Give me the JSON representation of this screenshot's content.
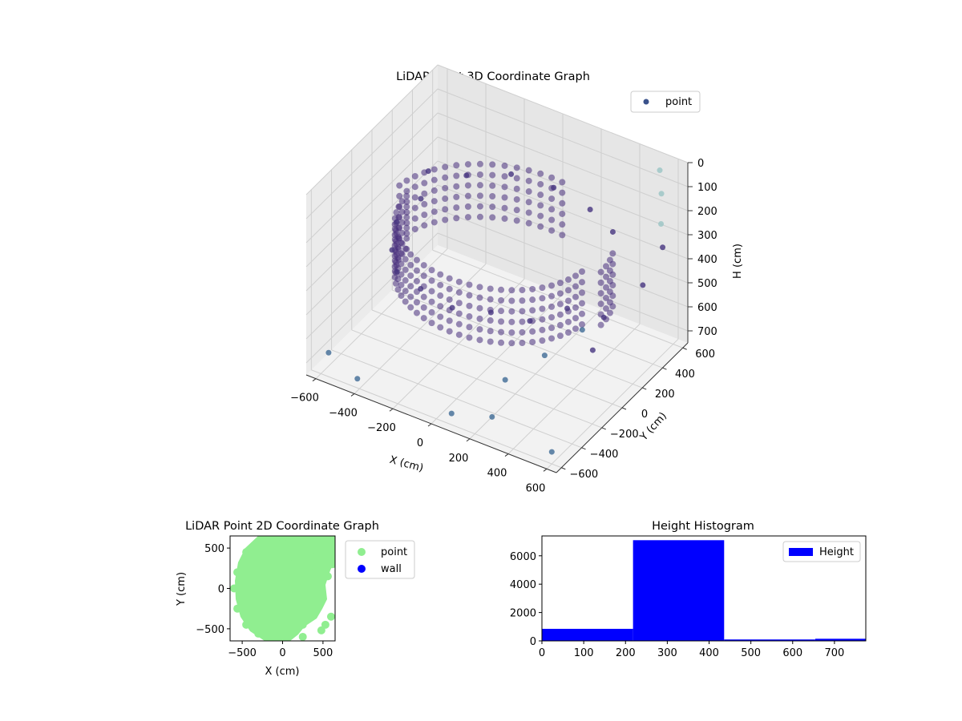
{
  "chart_data": [
    {
      "type": "scatter",
      "dims": 3,
      "title": "LiDAR Point 3D Coordinate Graph",
      "xlabel": "X (cm)",
      "ylabel": "Y (cm)",
      "zlabel": "H (cm)",
      "xticks": [
        "−600",
        "−400",
        "−200",
        "0",
        "200",
        "400",
        "600"
      ],
      "yticks": [
        "−600",
        "−400",
        "−200",
        "0",
        "200",
        "400",
        "600"
      ],
      "zticks": [
        "0",
        "100",
        "200",
        "300",
        "400",
        "500",
        "600",
        "700"
      ],
      "xlim": [
        -650,
        650
      ],
      "ylim": [
        -650,
        650
      ],
      "zlim": [
        0,
        750
      ],
      "z_inverted": true,
      "grid": true,
      "legend_position": "top-right",
      "series": [
        {
          "name": "point",
          "color": "#3b528b",
          "colormap": "viridis",
          "shape": "ring of points around a cylindrical wall with scattered outliers",
          "points": [
            [
              -520,
              310,
              260
            ],
            [
              -480,
              160,
              300
            ],
            [
              -500,
              -40,
              320
            ],
            [
              -430,
              -220,
              340
            ],
            [
              -320,
              -380,
              330
            ],
            [
              -150,
              -470,
              310
            ],
            [
              30,
              -500,
              320
            ],
            [
              210,
              -460,
              300
            ],
            [
              360,
              -360,
              330
            ],
            [
              470,
              -200,
              310
            ],
            [
              -380,
              420,
              280
            ],
            [
              -200,
              520,
              260
            ],
            [
              0,
              560,
              270
            ],
            [
              200,
              540,
              290
            ],
            [
              360,
              460,
              300
            ],
            [
              520,
              620,
              60
            ],
            [
              560,
              560,
              120
            ],
            [
              600,
              480,
              200
            ],
            [
              640,
              420,
              260
            ],
            [
              600,
              300,
              380
            ],
            [
              -560,
              -600,
              650
            ],
            [
              -400,
              -620,
              700
            ],
            [
              100,
              -640,
              680
            ],
            [
              300,
              -620,
              640
            ],
            [
              600,
              -600,
              700
            ],
            [
              450,
              200,
              520
            ],
            [
              380,
              120,
              560
            ],
            [
              300,
              -100,
              600
            ],
            [
              200,
              -300,
              650
            ],
            [
              550,
              -100,
              500
            ]
          ]
        }
      ]
    },
    {
      "type": "scatter",
      "title": "LiDAR Point 2D Coordinate Graph",
      "xlabel": "X (cm)",
      "ylabel": "Y (cm)",
      "xticks": [
        "−500",
        "0",
        "500"
      ],
      "yticks": [
        "−500",
        "0",
        "500"
      ],
      "xlim": [
        -650,
        650
      ],
      "ylim": [
        -650,
        650
      ],
      "legend_position": "outside-right",
      "series": [
        {
          "name": "point",
          "color": "#90ee90",
          "points": [
            [
              -560,
              200
            ],
            [
              -600,
              0
            ],
            [
              -560,
              -250
            ],
            [
              -450,
              -450
            ],
            [
              -300,
              -560
            ],
            [
              -100,
              -600
            ],
            [
              100,
              -560
            ],
            [
              250,
              -450
            ],
            [
              350,
              -300
            ],
            [
              420,
              -150
            ],
            [
              430,
              0
            ],
            [
              400,
              200
            ],
            [
              350,
              400
            ],
            [
              250,
              560
            ],
            [
              0,
              620
            ],
            [
              -250,
              600
            ],
            [
              -450,
              450
            ],
            [
              -200,
              200
            ],
            [
              0,
              0
            ],
            [
              200,
              -100
            ],
            [
              -300,
              -200
            ],
            [
              100,
              300
            ],
            [
              530,
              -450
            ],
            [
              600,
              -350
            ],
            [
              480,
              -520
            ],
            [
              560,
              150
            ],
            [
              620,
              300
            ],
            [
              580,
              500
            ],
            [
              250,
              -600
            ],
            [
              -50,
              -640
            ]
          ]
        },
        {
          "name": "wall",
          "color": "#0000ff",
          "points": []
        }
      ]
    },
    {
      "type": "histogram",
      "title": "Height Histogram",
      "xlabel": "",
      "ylabel": "",
      "xticks": [
        "0",
        "100",
        "200",
        "300",
        "400",
        "500",
        "600",
        "700"
      ],
      "yticks": [
        "0",
        "2000",
        "4000",
        "6000"
      ],
      "xlim": [
        0,
        775
      ],
      "ylim": [
        0,
        7400
      ],
      "legend_position": "top-right",
      "series": [
        {
          "name": "Height",
          "color": "#0000ff",
          "bins": [
            0,
            218,
            436,
            654,
            775
          ],
          "counts": [
            850,
            7100,
            100,
            150
          ]
        }
      ]
    }
  ]
}
